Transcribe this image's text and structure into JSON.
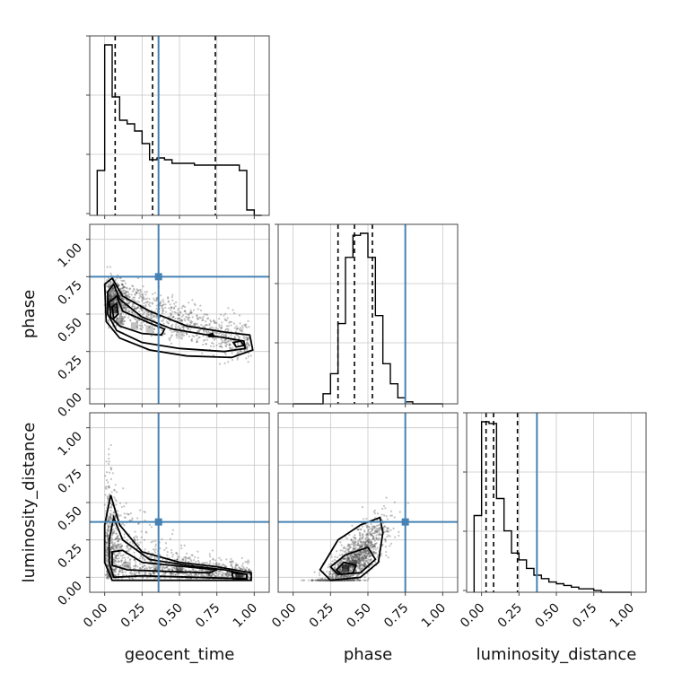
{
  "chart_data": {
    "type": "corner",
    "parameters": [
      {
        "name": "geocent_time",
        "range": [
          -0.1,
          1.1
        ]
      },
      {
        "name": "phase",
        "range": [
          -0.1,
          1.1
        ]
      },
      {
        "name": "luminosity_distance",
        "range": [
          -0.1,
          1.1
        ]
      }
    ],
    "tick_labels": [
      "0.00",
      "0.25",
      "0.50",
      "0.75",
      "1.00"
    ],
    "tick_values": [
      0,
      0.25,
      0.5,
      0.75,
      1.0
    ],
    "truth": {
      "geocent_time": 0.36,
      "phase": 0.75,
      "luminosity_distance": 0.37
    },
    "quantiles": {
      "geocent_time": [
        0.07,
        0.32,
        0.74
      ],
      "phase": [
        0.3,
        0.41,
        0.53
      ],
      "luminosity_distance": [
        0.03,
        0.08,
        0.24
      ]
    },
    "histograms": {
      "geocent_time": {
        "edges": [
          -0.05,
          0.0,
          0.05,
          0.1,
          0.15,
          0.2,
          0.25,
          0.3,
          0.35,
          0.4,
          0.45,
          0.5,
          0.55,
          0.6,
          0.65,
          0.7,
          0.75,
          0.8,
          0.85,
          0.9,
          0.95,
          1.0,
          1.05
        ],
        "counts": [
          0.25,
          0.95,
          0.66,
          0.53,
          0.51,
          0.47,
          0.4,
          0.31,
          0.32,
          0.31,
          0.29,
          0.29,
          0.29,
          0.28,
          0.28,
          0.28,
          0.28,
          0.28,
          0.28,
          0.25,
          0.03,
          0.0
        ]
      },
      "phase": {
        "edges": [
          0.0,
          0.05,
          0.1,
          0.15,
          0.2,
          0.25,
          0.3,
          0.35,
          0.4,
          0.45,
          0.5,
          0.55,
          0.6,
          0.65,
          0.7,
          0.75,
          0.8,
          0.85,
          0.9,
          0.95,
          1.0
        ],
        "counts": [
          0,
          0,
          0,
          0,
          0.05,
          0.15,
          0.4,
          0.73,
          0.84,
          0.85,
          0.73,
          0.44,
          0.2,
          0.1,
          0.03,
          0.01,
          0,
          0,
          0,
          0
        ]
      },
      "luminosity_distance": {
        "edges": [
          -0.05,
          0.0,
          0.05,
          0.1,
          0.15,
          0.2,
          0.25,
          0.3,
          0.35,
          0.4,
          0.45,
          0.5,
          0.55,
          0.6,
          0.65,
          0.7,
          0.75,
          0.8,
          0.85,
          0.9,
          0.95,
          1.0
        ],
        "counts": [
          0.45,
          1.0,
          0.99,
          0.55,
          0.36,
          0.23,
          0.19,
          0.14,
          0.1,
          0.08,
          0.06,
          0.05,
          0.04,
          0.03,
          0.02,
          0.02,
          0.01,
          0.0,
          0.0,
          0.0,
          0.0
        ]
      }
    },
    "contours": {
      "phase_vs_geocent_time": [
        [
          [
            0.0,
            0.7
          ],
          [
            0.05,
            0.74
          ],
          [
            0.12,
            0.62
          ],
          [
            0.3,
            0.52
          ],
          [
            0.55,
            0.42
          ],
          [
            0.8,
            0.38
          ],
          [
            0.97,
            0.36
          ],
          [
            0.99,
            0.26
          ],
          [
            0.85,
            0.21
          ],
          [
            0.55,
            0.22
          ],
          [
            0.3,
            0.26
          ],
          [
            0.1,
            0.34
          ],
          [
            0.01,
            0.45
          ],
          [
            0.0,
            0.7
          ]
        ],
        [
          [
            0.02,
            0.65
          ],
          [
            0.06,
            0.7
          ],
          [
            0.1,
            0.6
          ],
          [
            0.25,
            0.48
          ],
          [
            0.45,
            0.4
          ],
          [
            0.75,
            0.35
          ],
          [
            0.93,
            0.32
          ],
          [
            0.94,
            0.27
          ],
          [
            0.8,
            0.25
          ],
          [
            0.5,
            0.27
          ],
          [
            0.25,
            0.31
          ],
          [
            0.08,
            0.39
          ],
          [
            0.02,
            0.5
          ],
          [
            0.02,
            0.65
          ]
        ],
        [
          [
            0.03,
            0.58
          ],
          [
            0.08,
            0.62
          ],
          [
            0.12,
            0.52
          ],
          [
            0.3,
            0.44
          ],
          [
            0.4,
            0.4
          ],
          [
            0.38,
            0.36
          ],
          [
            0.25,
            0.37
          ],
          [
            0.1,
            0.42
          ],
          [
            0.04,
            0.48
          ],
          [
            0.03,
            0.58
          ]
        ],
        [
          [
            0.05,
            0.55
          ],
          [
            0.08,
            0.57
          ],
          [
            0.09,
            0.5
          ],
          [
            0.06,
            0.47
          ],
          [
            0.05,
            0.55
          ]
        ],
        [
          [
            0.86,
            0.31
          ],
          [
            0.91,
            0.32
          ],
          [
            0.93,
            0.29
          ],
          [
            0.88,
            0.28
          ],
          [
            0.86,
            0.31
          ]
        ],
        [
          [
            0.69,
            0.36
          ],
          [
            0.72,
            0.37
          ],
          [
            0.73,
            0.35
          ],
          [
            0.7,
            0.35
          ],
          [
            0.69,
            0.36
          ]
        ]
      ],
      "luminosity_distance_vs_geocent_time": [
        [
          [
            0.0,
            0.35
          ],
          [
            0.04,
            0.55
          ],
          [
            0.1,
            0.35
          ],
          [
            0.25,
            0.17
          ],
          [
            0.5,
            0.1
          ],
          [
            0.75,
            0.07
          ],
          [
            0.98,
            0.03
          ],
          [
            0.98,
            -0.02
          ],
          [
            0.7,
            -0.02
          ],
          [
            0.3,
            -0.02
          ],
          [
            0.05,
            -0.02
          ],
          [
            0.0,
            0.1
          ],
          [
            0.0,
            0.35
          ]
        ],
        [
          [
            0.03,
            0.25
          ],
          [
            0.06,
            0.4
          ],
          [
            0.12,
            0.25
          ],
          [
            0.3,
            0.12
          ],
          [
            0.55,
            0.08
          ],
          [
            0.8,
            0.05
          ],
          [
            0.95,
            0.02
          ],
          [
            0.95,
            -0.01
          ],
          [
            0.6,
            0.0
          ],
          [
            0.25,
            0.01
          ],
          [
            0.06,
            0.0
          ],
          [
            0.03,
            0.1
          ],
          [
            0.03,
            0.25
          ]
        ],
        [
          [
            0.05,
            0.17
          ],
          [
            0.12,
            0.18
          ],
          [
            0.25,
            0.1
          ],
          [
            0.45,
            0.08
          ],
          [
            0.75,
            0.05
          ],
          [
            0.7,
            0.03
          ],
          [
            0.4,
            0.04
          ],
          [
            0.15,
            0.05
          ],
          [
            0.05,
            0.08
          ],
          [
            0.05,
            0.17
          ]
        ],
        [
          [
            0.85,
            0.03
          ],
          [
            0.95,
            0.02
          ],
          [
            0.95,
            -0.01
          ],
          [
            0.86,
            -0.01
          ],
          [
            0.85,
            0.03
          ]
        ]
      ],
      "luminosity_distance_vs_phase": [
        [
          [
            0.18,
            0.05
          ],
          [
            0.3,
            0.25
          ],
          [
            0.45,
            0.35
          ],
          [
            0.58,
            0.4
          ],
          [
            0.6,
            0.3
          ],
          [
            0.57,
            0.1
          ],
          [
            0.45,
            0.0
          ],
          [
            0.25,
            -0.02
          ],
          [
            0.18,
            0.05
          ]
        ],
        [
          [
            0.25,
            0.07
          ],
          [
            0.35,
            0.15
          ],
          [
            0.5,
            0.2
          ],
          [
            0.55,
            0.12
          ],
          [
            0.45,
            0.03
          ],
          [
            0.3,
            0.02
          ],
          [
            0.25,
            0.07
          ]
        ],
        [
          [
            0.29,
            0.05
          ],
          [
            0.34,
            0.1
          ],
          [
            0.42,
            0.08
          ],
          [
            0.4,
            0.03
          ],
          [
            0.32,
            0.02
          ],
          [
            0.29,
            0.05
          ]
        ]
      ]
    },
    "density_blocks": {
      "phase_vs_geocent_time": [
        [
          0.06,
          0.53,
          0.9
        ],
        [
          0.04,
          0.58,
          0.5
        ],
        [
          0.1,
          0.45,
          0.45
        ],
        [
          0.2,
          0.42,
          0.35
        ],
        [
          0.3,
          0.4,
          0.3
        ],
        [
          0.5,
          0.36,
          0.2
        ]
      ],
      "luminosity_distance_vs_geocent_time": [
        [
          0.9,
          0.0,
          0.9
        ],
        [
          0.5,
          0.05,
          0.6
        ],
        [
          0.15,
          0.08,
          0.35
        ],
        [
          0.35,
          0.06,
          0.35
        ],
        [
          0.08,
          0.2,
          0.25
        ],
        [
          0.7,
          0.03,
          0.4
        ]
      ],
      "luminosity_distance_vs_phase": [
        [
          0.35,
          0.06,
          0.9
        ],
        [
          0.4,
          0.09,
          0.45
        ],
        [
          0.3,
          0.03,
          0.3
        ]
      ]
    }
  }
}
